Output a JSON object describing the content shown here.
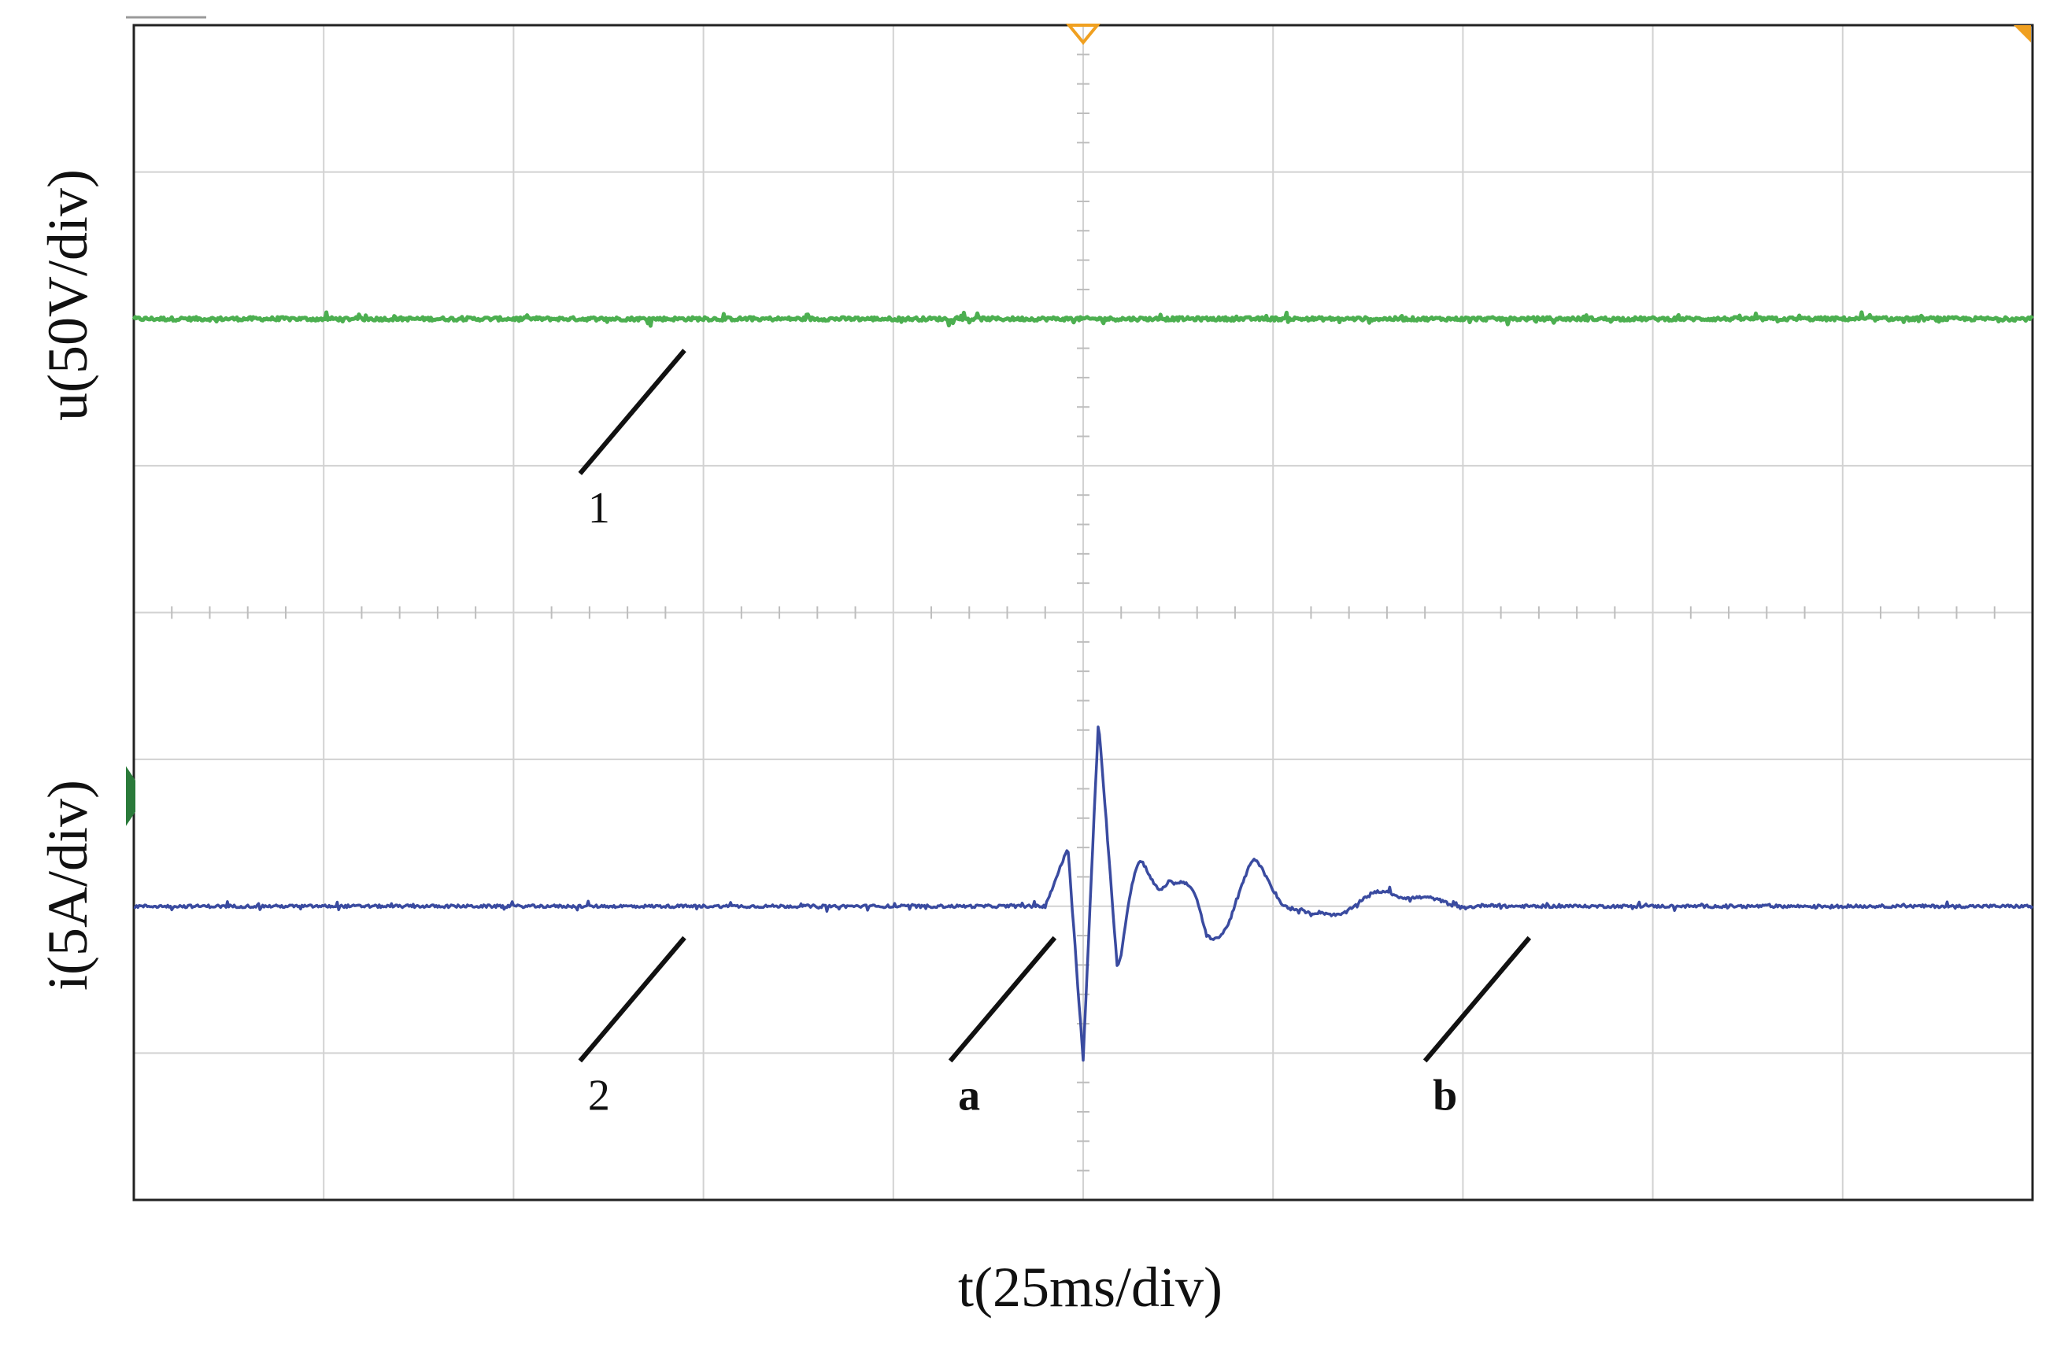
{
  "chart_data": {
    "type": "line",
    "title": "",
    "xlabel": "t(25ms/div)",
    "y_labels": {
      "upper": "u(50V/div)",
      "lower": "i(5A/div)"
    },
    "grid": true,
    "x_divisions": 10,
    "y_divisions": 8,
    "x_range_div": [
      0,
      10
    ],
    "y_range_div": [
      -4,
      4
    ],
    "series": [
      {
        "color": "#4caf50",
        "kind": "flat_noise",
        "level_div": 2.0,
        "noise_div": 0.025
      },
      {
        "color": "#3a4ba0",
        "kind": "damped_transient",
        "level_div": -2.0,
        "noise_div": 0.02,
        "x": [
          0.0,
          4.8,
          4.92,
          5.0,
          5.08,
          5.18,
          5.3,
          5.45,
          5.65,
          5.9,
          6.2,
          6.6,
          7.0,
          10.0
        ],
        "y": [
          -2.0,
          -2.0,
          -1.6,
          -3.05,
          -0.73,
          -2.42,
          -1.9,
          -1.65,
          -2.25,
          -1.75,
          -2.1,
          -1.9,
          -2.0,
          -2.0
        ]
      }
    ],
    "annotations": [
      {
        "text": "1",
        "bold": false,
        "near_series": 0,
        "x_div": 2.35
      },
      {
        "text": "2",
        "bold": false,
        "near_series": 1,
        "x_div": 2.35
      },
      {
        "text": "a",
        "bold": true,
        "near_series": 1,
        "x_div": 4.3
      },
      {
        "text": "b",
        "bold": true,
        "near_series": 1,
        "x_div": 6.8
      }
    ],
    "markers": {
      "trigger_color": "#f0a020",
      "channel_color": "#2a7a3a"
    }
  }
}
